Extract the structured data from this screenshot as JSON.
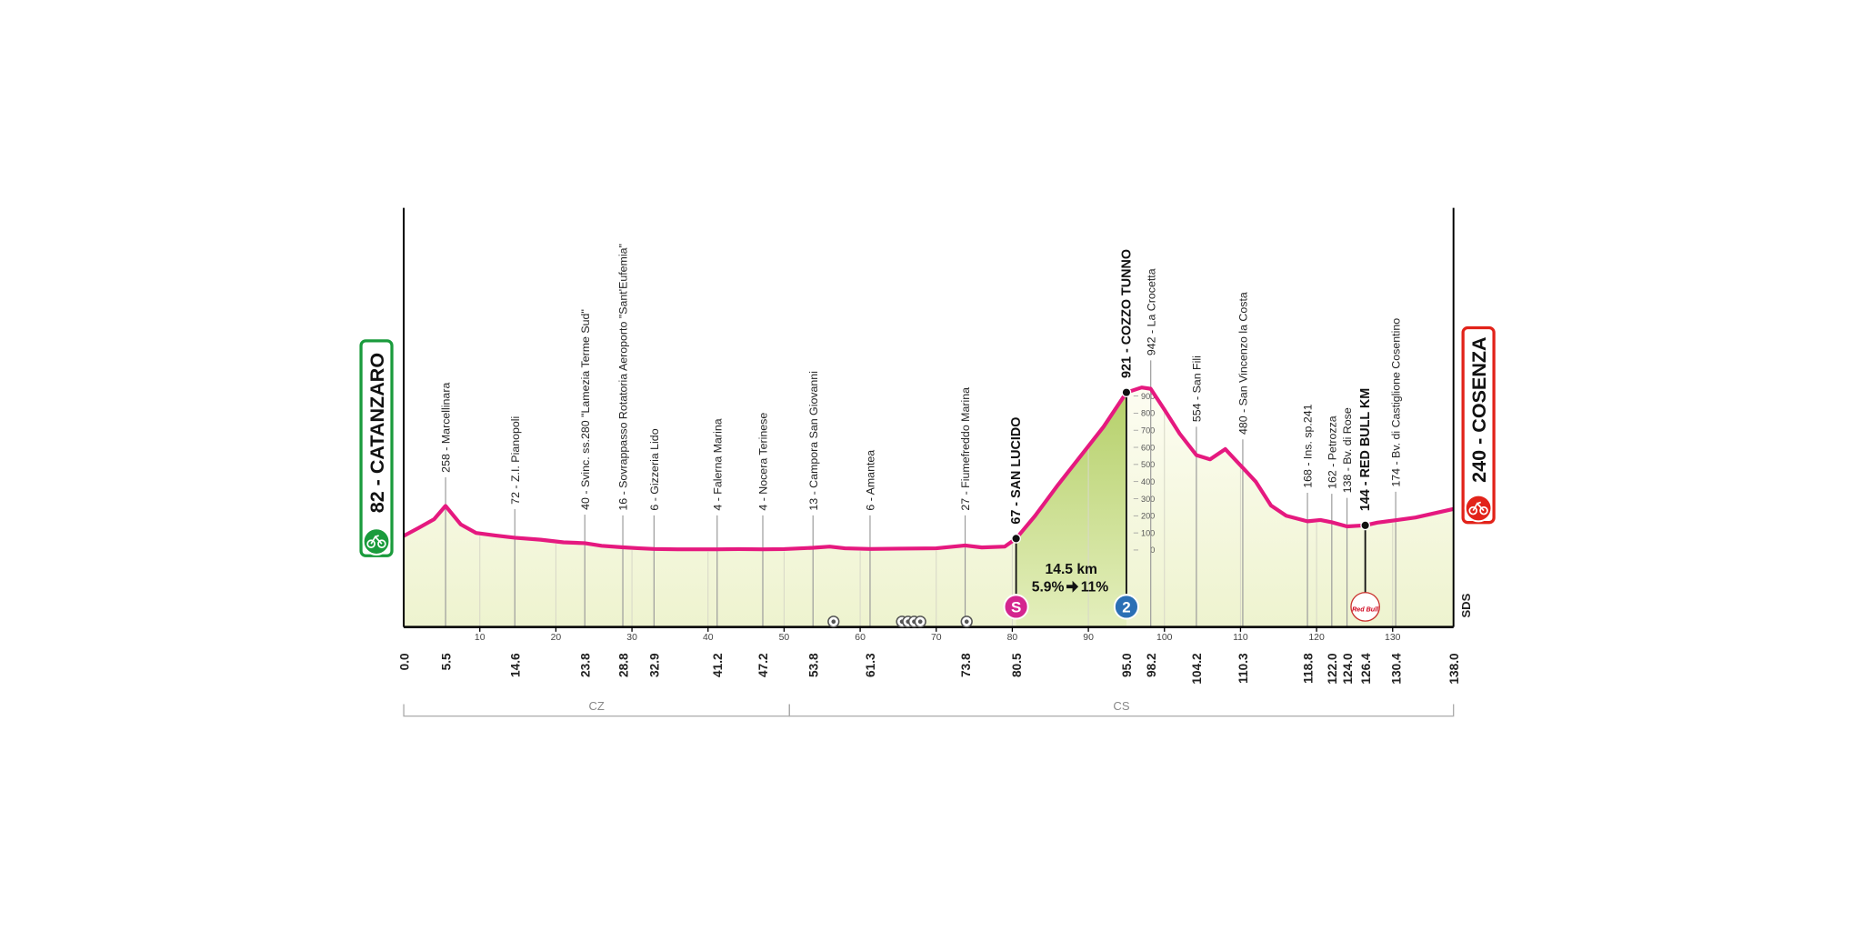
{
  "chart_data": {
    "type": "profile",
    "color": "#e5197f",
    "fill_color": "#f5f7dc",
    "x": [
      0,
      2,
      4,
      5.5,
      7.5,
      9.5,
      12,
      14.6,
      18,
      21,
      23.8,
      26,
      28.8,
      31,
      32.9,
      36,
      41.2,
      44,
      47.2,
      50,
      53.8,
      56,
      58,
      61.3,
      65,
      70,
      73.8,
      76,
      79,
      80.5,
      83,
      86,
      89,
      92,
      95,
      97,
      98.2,
      100,
      102,
      104.2,
      106,
      108,
      110.3,
      112,
      114,
      116,
      118.8,
      120.5,
      122,
      124,
      126.4,
      128,
      130.4,
      133,
      136,
      138
    ],
    "values": [
      82,
      130,
      180,
      258,
      150,
      100,
      85,
      72,
      60,
      45,
      40,
      25,
      16,
      10,
      6,
      4,
      4,
      5,
      4,
      5,
      13,
      20,
      10,
      6,
      8,
      10,
      27,
      15,
      20,
      67,
      200,
      380,
      550,
      720,
      921,
      950,
      942,
      820,
      680,
      554,
      530,
      590,
      480,
      400,
      260,
      200,
      168,
      175,
      162,
      138,
      144,
      160,
      174,
      190,
      220,
      240
    ],
    "xlim": [
      0,
      138
    ],
    "xticks": [
      10,
      20,
      30,
      40,
      50,
      60,
      70,
      80,
      90,
      100,
      110,
      120,
      130
    ],
    "ylim": [
      -450,
      2000
    ],
    "yticks": [
      0,
      100,
      200,
      300,
      400,
      500,
      600,
      700,
      800,
      900
    ],
    "start": {
      "label": "82 - CATANZARO",
      "km": {
        "value": 0,
        "label": "0.0"
      },
      "color": "#1a9b3c"
    },
    "finish": {
      "label": "240 - COSENZA",
      "km": {
        "value": 138,
        "label": "138.0"
      },
      "color": "#e2231a"
    },
    "waypoints": [
      {
        "km": 5.5,
        "label": "258 - Marcellinara"
      },
      {
        "km": 14.6,
        "label": "72 - Z.I. Pianopoli"
      },
      {
        "km": 23.8,
        "label": "40 - Svinc. ss.280 \"Lamezia Terme Sud\""
      },
      {
        "km": 28.8,
        "label": "16 - Sovrappasso Rotatoria Aeroporto \"Sant'Eufemia\""
      },
      {
        "km": 32.9,
        "label": "6 - Gizzeria Lido"
      },
      {
        "km": 41.2,
        "label": "4 - Falerna Marina"
      },
      {
        "km": 47.2,
        "label": "4 - Nocera Terinese"
      },
      {
        "km": 53.8,
        "label": "13 - Campora San Giovanni"
      },
      {
        "km": 61.3,
        "label": "6 - Amantea"
      },
      {
        "km": 73.8,
        "label": "27 - Fiumefreddo Marina"
      },
      {
        "km": 80.5,
        "label": "67 - SAN LUCIDO",
        "kind": "sprint",
        "icon": "S",
        "icon_color": "#d4258f"
      },
      {
        "km": {
          "value": 95,
          "label": "95.0"
        },
        "label": "921 - COZZO TUNNO",
        "kind": "kom",
        "icon": "2",
        "icon_color": "#2b6fb5"
      },
      {
        "km": 98.2,
        "label": "942 - La Crocetta"
      },
      {
        "km": 104.2,
        "label": "554 - San Fili"
      },
      {
        "km": 110.3,
        "label": "480 - San Vincenzo la Costa"
      },
      {
        "km": 118.8,
        "label": "168 - Ins. sp.241"
      },
      {
        "km": {
          "value": 122,
          "label": "122.0"
        },
        "label": "162 - Petrozza"
      },
      {
        "km": {
          "value": 124,
          "label": "124.0"
        },
        "label": "138 - Bv. di Rose"
      },
      {
        "km": 126.4,
        "label": "144 - RED BULL KM",
        "kind": "redbull",
        "icon": "Red Bull",
        "icon_color": "#ffffff"
      },
      {
        "km": 130.4,
        "label": "174 - Bv. di Castiglione Cosentino"
      }
    ],
    "climb": {
      "length": "14.5 km",
      "gradient": "5.9%",
      "max": "11%",
      "color": "#c8db8c"
    },
    "tunnels": [
      56.5,
      65.5,
      66.3,
      67.1,
      67.9,
      74
    ],
    "brand": "SDS",
    "regions": [
      {
        "label": "CZ",
        "from": 0,
        "to": 50.7
      },
      {
        "label": "CS",
        "from": 50.7,
        "to": 138
      }
    ]
  }
}
